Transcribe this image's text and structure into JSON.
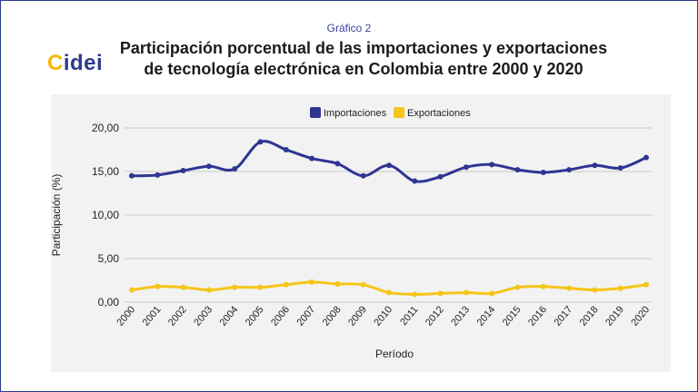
{
  "header": {
    "kicker": "Gráfico 2",
    "title_line1": "Participación porcentual de las importaciones y exportaciones",
    "title_line2": "de tecnología electrónica en Colombia entre 2000 y 2020",
    "logo_text": "Cidei"
  },
  "colors": {
    "importaciones": "#2e3592",
    "exportaciones": "#f5c518",
    "accent": "#2e3a8c",
    "logo_c": "#f5b800"
  },
  "chart_data": {
    "type": "line",
    "title": "Participación porcentual de las importaciones y exportaciones de tecnología electrónica en Colombia entre 2000 y 2020",
    "xlabel": "Período",
    "ylabel": "Participación (%)",
    "ylim": [
      0,
      20
    ],
    "yticks": [
      "0,00",
      "5,00",
      "10,00",
      "15,00",
      "20,00"
    ],
    "grid": true,
    "legend_position": "top",
    "categories": [
      "2000",
      "2001",
      "2002",
      "2003",
      "2004",
      "2005",
      "2006",
      "2007",
      "2008",
      "2009",
      "2010",
      "2011",
      "2012",
      "2013",
      "2014",
      "2015",
      "2016",
      "2017",
      "2018",
      "2019",
      "2020"
    ],
    "series": [
      {
        "name": "Importaciones",
        "values": [
          14.5,
          14.6,
          15.1,
          15.6,
          15.3,
          18.4,
          17.5,
          16.5,
          15.9,
          14.5,
          15.7,
          13.9,
          14.4,
          15.5,
          15.8,
          15.2,
          14.9,
          15.2,
          15.7,
          15.4,
          16.6
        ]
      },
      {
        "name": "Exportaciones",
        "values": [
          1.4,
          1.8,
          1.7,
          1.4,
          1.7,
          1.7,
          2.0,
          2.3,
          2.1,
          2.0,
          1.1,
          0.9,
          1.0,
          1.1,
          1.0,
          1.7,
          1.8,
          1.6,
          1.4,
          1.6,
          2.0
        ]
      }
    ]
  }
}
